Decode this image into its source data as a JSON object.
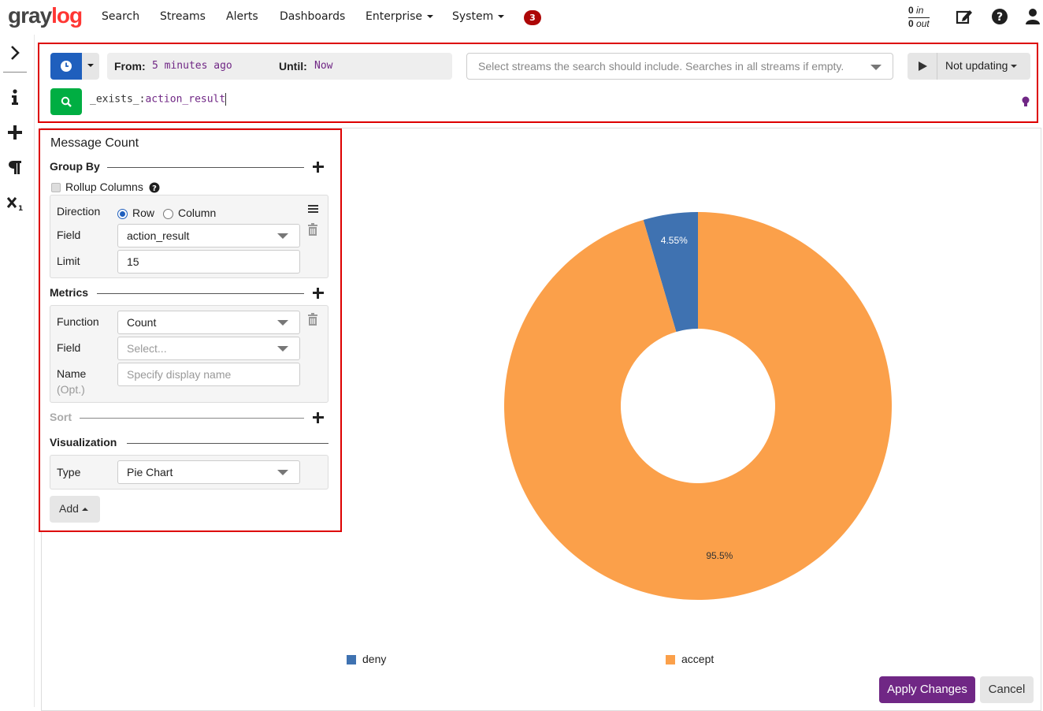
{
  "app": {
    "logo_part1": "gray",
    "logo_part2": "log"
  },
  "nav": {
    "items": [
      "Search",
      "Streams",
      "Alerts",
      "Dashboards",
      "Enterprise",
      "System"
    ],
    "notifications_count": "3",
    "throughput_in_value": "0",
    "throughput_in_label": "in",
    "throughput_out_value": "0",
    "throughput_out_label": "out"
  },
  "search": {
    "from_label": "From:",
    "from_value": "5 minutes ago",
    "until_label": "Until:",
    "until_value": "Now",
    "streams_placeholder": "Select streams the search should include. Searches in all streams if empty.",
    "refresh_label": "Not updating",
    "query_key": "_exists_",
    "query_sep": ":",
    "query_value": "action_result"
  },
  "editor": {
    "title": "Message Count",
    "group_by": {
      "heading": "Group By",
      "rollup_label": "Rollup Columns",
      "direction_label": "Direction",
      "direction_row": "Row",
      "direction_column": "Column",
      "field_label": "Field",
      "field_value": "action_result",
      "limit_label": "Limit",
      "limit_value": "15"
    },
    "metrics": {
      "heading": "Metrics",
      "function_label": "Function",
      "function_value": "Count",
      "field_label": "Field",
      "field_placeholder": "Select...",
      "name_label": "Name",
      "name_opt": "(Opt.)",
      "name_placeholder": "Specify display name"
    },
    "sort": {
      "heading": "Sort"
    },
    "visualization": {
      "heading": "Visualization",
      "type_label": "Type",
      "type_value": "Pie Chart"
    },
    "add_label": "Add"
  },
  "chart_data": {
    "type": "pie",
    "donut": true,
    "categories": [
      "deny",
      "accept"
    ],
    "values": [
      4.55,
      95.5
    ],
    "labels": [
      "4.55%",
      "95.5%"
    ],
    "colors": [
      "#3f72b1",
      "#fba04a"
    ],
    "legend": "bottom"
  },
  "actions": {
    "apply": "Apply Changes",
    "cancel": "Cancel"
  }
}
